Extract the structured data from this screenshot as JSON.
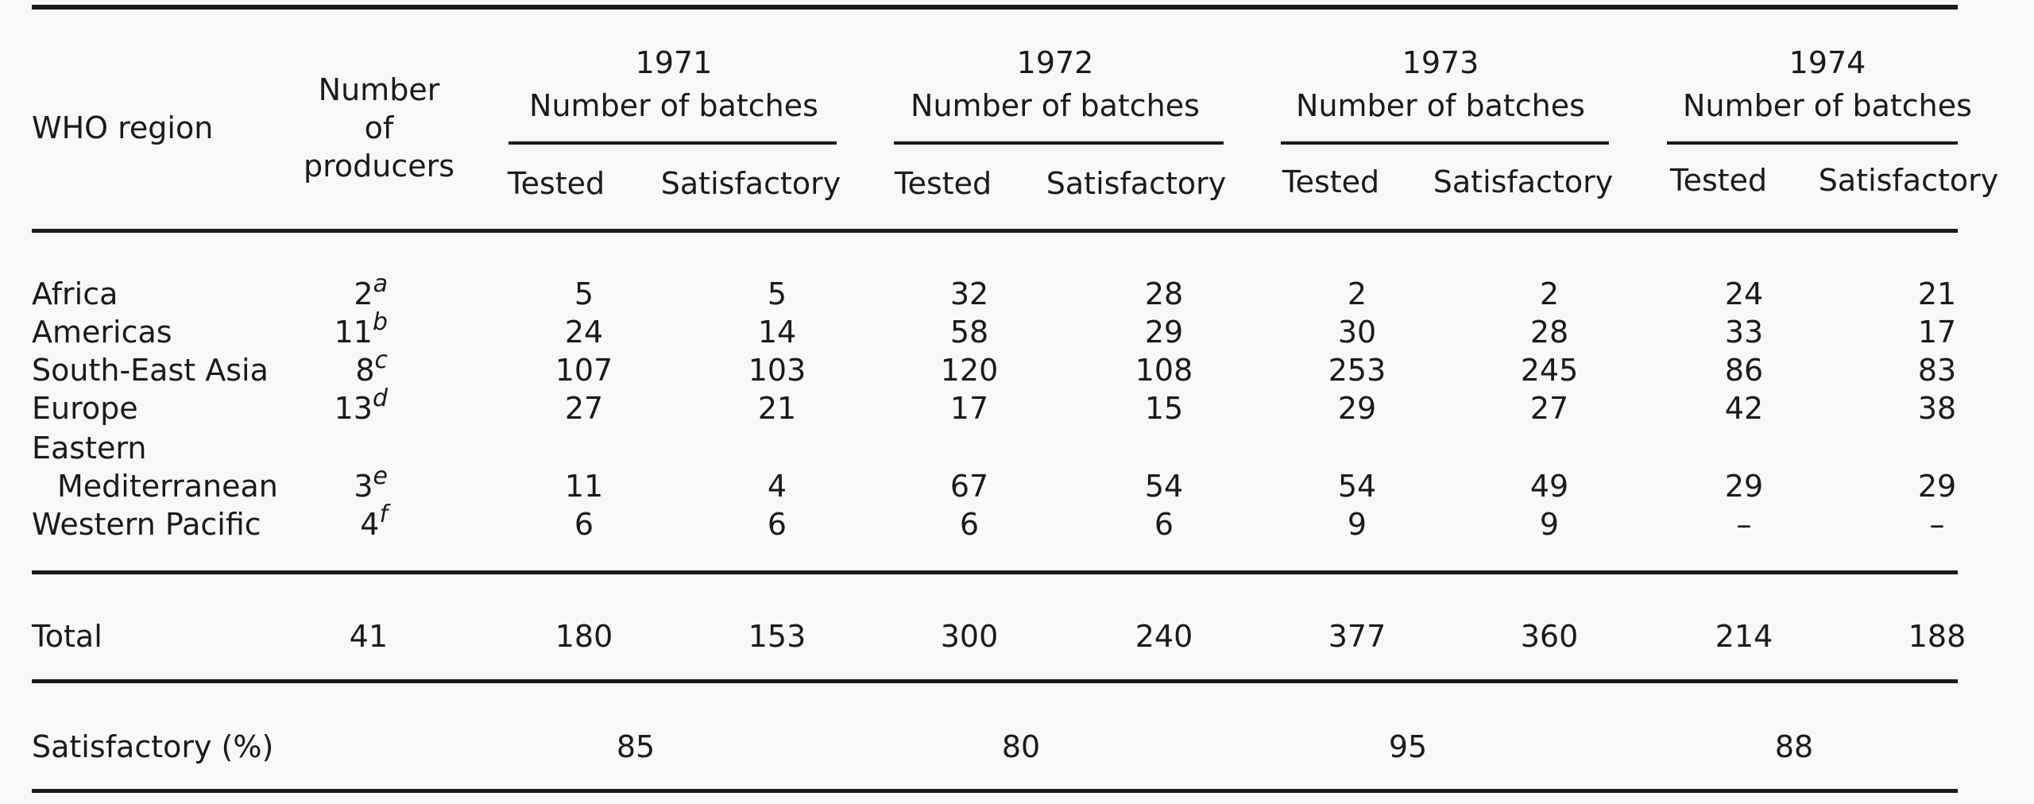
{
  "header": {
    "region_label": "WHO region",
    "producers_line1": "Number",
    "producers_line2": "of",
    "producers_line3": "producers",
    "years": [
      {
        "year": "1971",
        "sub": "Number of batches",
        "tested": "Tested",
        "satisfactory": "Satisfactory"
      },
      {
        "year": "1972",
        "sub": "Number of batches",
        "tested": "Tested",
        "satisfactory": "Satisfactory"
      },
      {
        "year": "1973",
        "sub": "Number of batches",
        "tested": "Tested",
        "satisfactory": "Satisfactory"
      },
      {
        "year": "1974",
        "sub": "Number of batches",
        "tested": "Tested",
        "satisfactory": "Satisfactory"
      }
    ]
  },
  "rows": [
    {
      "region": "Africa",
      "producers": "2",
      "note": "a",
      "values": [
        "5",
        "5",
        "32",
        "28",
        "2",
        "2",
        "24",
        "21"
      ]
    },
    {
      "region": "Americas",
      "producers": "11",
      "note": "b",
      "values": [
        "24",
        "14",
        "58",
        "29",
        "30",
        "28",
        "33",
        "17"
      ]
    },
    {
      "region": "South-East Asia",
      "producers": "8",
      "note": "c",
      "values": [
        "107",
        "103",
        "120",
        "108",
        "253",
        "245",
        "86",
        "83"
      ]
    },
    {
      "region": "Europe",
      "producers": "13",
      "note": "d",
      "values": [
        "27",
        "21",
        "17",
        "15",
        "29",
        "27",
        "42",
        "38"
      ]
    },
    {
      "region": "Eastern",
      "region_line2": "Mediterranean",
      "producers": "3",
      "note": "e",
      "values": [
        "11",
        "4",
        "67",
        "54",
        "54",
        "49",
        "29",
        "29"
      ]
    },
    {
      "region": "Western Pacific",
      "producers": "4",
      "note": "f",
      "values": [
        "6",
        "6",
        "6",
        "6",
        "9",
        "9",
        "–",
        "–"
      ]
    }
  ],
  "total": {
    "label": "Total",
    "producers": "41",
    "values": [
      "180",
      "153",
      "300",
      "240",
      "377",
      "360",
      "214",
      "188"
    ]
  },
  "satisfactory_pct": {
    "label": "Satisfactory (%)",
    "values": [
      "85",
      "80",
      "95",
      "88"
    ]
  }
}
